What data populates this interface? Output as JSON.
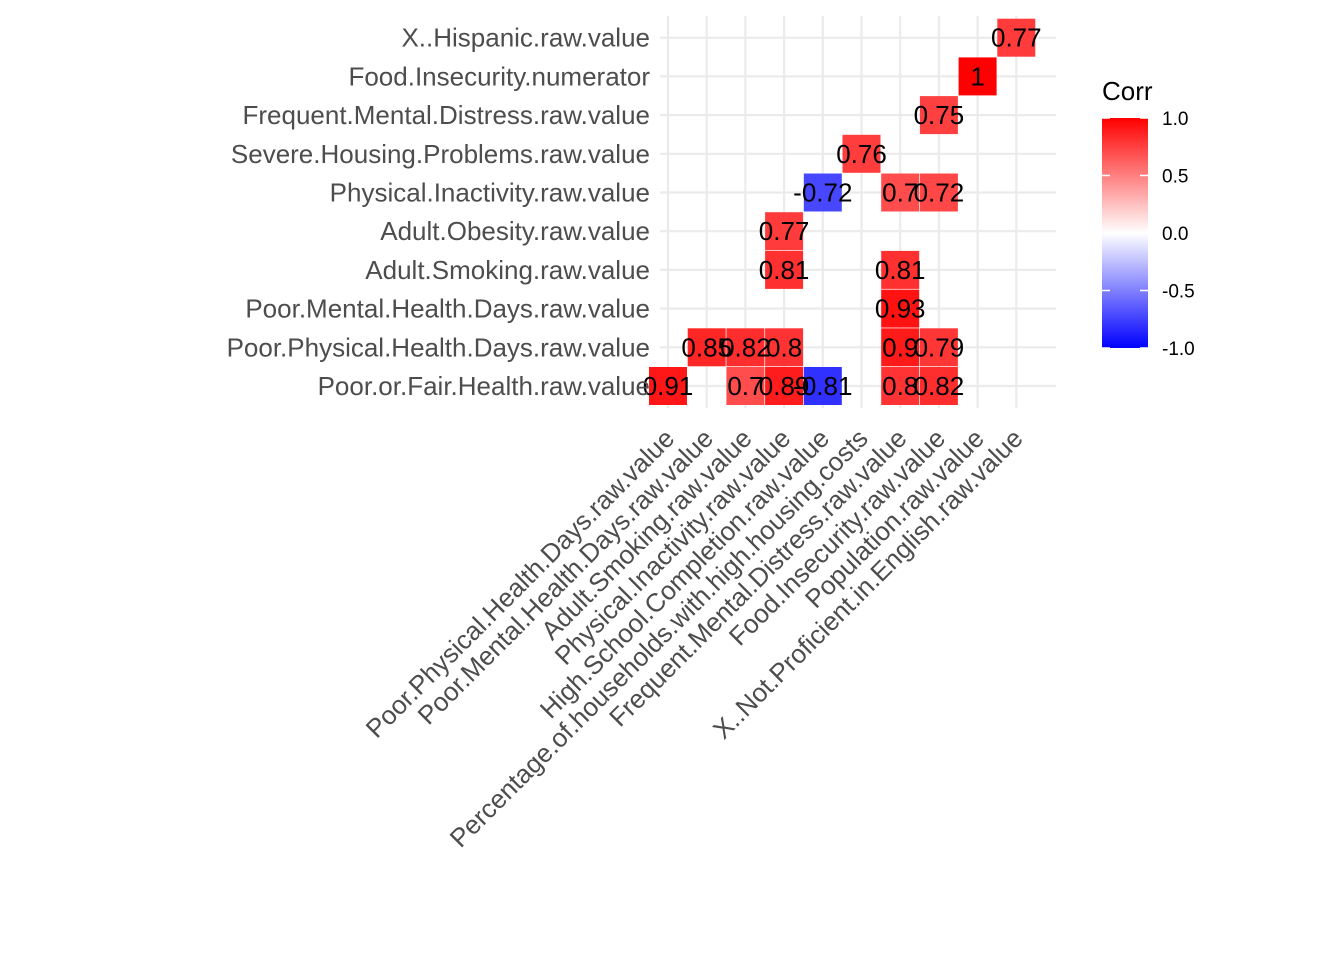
{
  "chart_data": {
    "type": "heatmap",
    "x_categories": [
      "Poor.Physical.Health.Days.raw.value",
      "Poor.Mental.Health.Days.raw.value",
      "Adult.Smoking.raw.value",
      "Physical.Inactivity.raw.value",
      "High.School.Completion.raw.value",
      "Percentage.of.households.with.high.housing.costs",
      "Frequent.Mental.Distress.raw.value",
      "Food.Insecurity.raw.value",
      "Population.raw.value",
      "X..Not.Proficient.in.English.raw.value"
    ],
    "y_categories": [
      "Poor.or.Fair.Health.raw.value",
      "Poor.Physical.Health.Days.raw.value",
      "Poor.Mental.Health.Days.raw.value",
      "Adult.Smoking.raw.value",
      "Adult.Obesity.raw.value",
      "Physical.Inactivity.raw.value",
      "Severe.Housing.Problems.raw.value",
      "Frequent.Mental.Distress.raw.value",
      "Food.Insecurity.numerator",
      "X..Hispanic.raw.value"
    ],
    "cells": [
      {
        "x": 0,
        "y": 0,
        "value": 0.91,
        "label": "0.91"
      },
      {
        "x": 2,
        "y": 0,
        "value": 0.7,
        "label": "0.7"
      },
      {
        "x": 3,
        "y": 0,
        "value": 0.89,
        "label": "0.89"
      },
      {
        "x": 4,
        "y": 0,
        "value": -0.81,
        "label": "-0.81"
      },
      {
        "x": 6,
        "y": 0,
        "value": 0.8,
        "label": "0.8"
      },
      {
        "x": 7,
        "y": 0,
        "value": 0.82,
        "label": "0.82"
      },
      {
        "x": 1,
        "y": 1,
        "value": 0.85,
        "label": "0.85"
      },
      {
        "x": 2,
        "y": 1,
        "value": 0.82,
        "label": "0.82"
      },
      {
        "x": 3,
        "y": 1,
        "value": 0.8,
        "label": "0.8"
      },
      {
        "x": 6,
        "y": 1,
        "value": 0.9,
        "label": "0.9"
      },
      {
        "x": 7,
        "y": 1,
        "value": 0.79,
        "label": "0.79"
      },
      {
        "x": 6,
        "y": 2,
        "value": 0.93,
        "label": "0.93"
      },
      {
        "x": 3,
        "y": 3,
        "value": 0.81,
        "label": "0.81"
      },
      {
        "x": 6,
        "y": 3,
        "value": 0.81,
        "label": "0.81"
      },
      {
        "x": 3,
        "y": 4,
        "value": 0.77,
        "label": "0.77"
      },
      {
        "x": 4,
        "y": 5,
        "value": -0.72,
        "label": "-0.72"
      },
      {
        "x": 6,
        "y": 5,
        "value": 0.7,
        "label": "0.7"
      },
      {
        "x": 7,
        "y": 5,
        "value": 0.72,
        "label": "0.72"
      },
      {
        "x": 5,
        "y": 6,
        "value": 0.76,
        "label": "0.76"
      },
      {
        "x": 7,
        "y": 7,
        "value": 0.75,
        "label": "0.75"
      },
      {
        "x": 8,
        "y": 8,
        "value": 1.0,
        "label": "1"
      },
      {
        "x": 9,
        "y": 9,
        "value": 0.77,
        "label": "0.77"
      }
    ],
    "legend": {
      "title": "Corr",
      "placement": "right",
      "range": [
        -1,
        1
      ],
      "ticks": [
        "1.0",
        "0.5",
        "0.0",
        "-0.5",
        "-1.0"
      ],
      "tick_values": [
        1,
        0.5,
        0,
        -0.5,
        -1
      ],
      "colors": {
        "low": "#0000ff",
        "mid": "#ffffff",
        "high": "#ff0000"
      }
    },
    "grid": true
  }
}
